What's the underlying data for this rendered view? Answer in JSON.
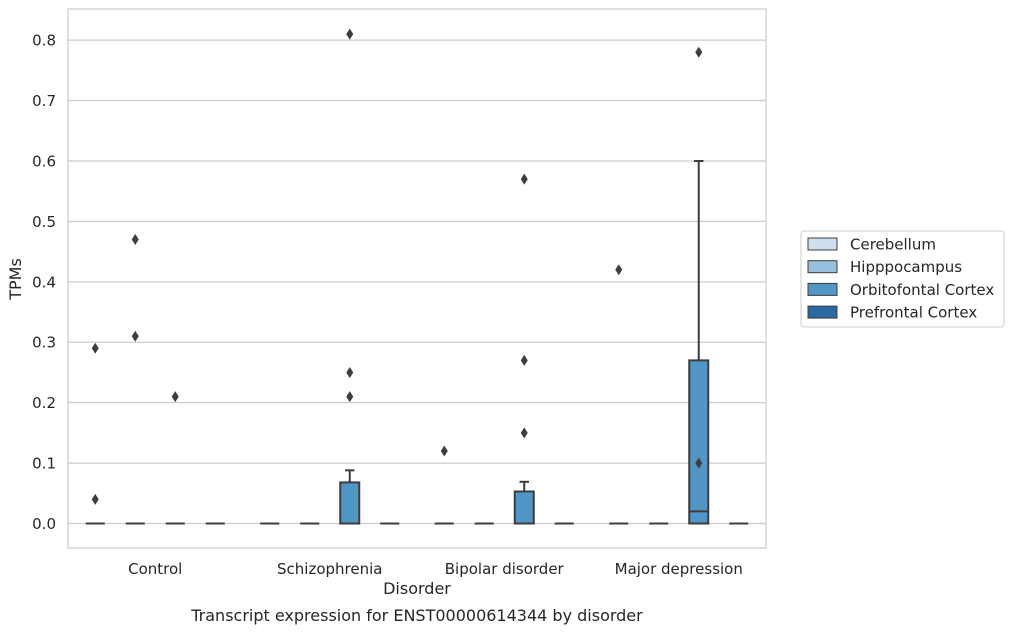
{
  "caption": "Transcript expression for ENST00000614344 by disorder",
  "chart_data": {
    "type": "box",
    "xlabel": "Disorder",
    "ylabel": "TPMs",
    "ylim": [
      -0.04,
      0.85
    ],
    "yticks": [
      0.0,
      0.1,
      0.2,
      0.3,
      0.4,
      0.5,
      0.6,
      0.7,
      0.8
    ],
    "grid": "horizontal",
    "legend_position": "right",
    "categories": [
      "Control",
      "Schizophrenia",
      "Bipolar disorder",
      "Major depression"
    ],
    "series": [
      {
        "name": "Cerebellum",
        "color": "#d0dff0"
      },
      {
        "name": "Hipppocampus",
        "color": "#96c0dd"
      },
      {
        "name": "Orbitofontal Cortex",
        "color": "#5196c5"
      },
      {
        "name": "Prefrontal Cortex",
        "color": "#2a68a4"
      }
    ],
    "groups": [
      {
        "boxes": [
          {
            "series": "Cerebellum",
            "q1": 0,
            "median": 0,
            "q3": 0,
            "whislo": 0,
            "whishi": 0,
            "fliers": [
              0.29,
              0.04
            ]
          },
          {
            "series": "Hipppocampus",
            "q1": 0,
            "median": 0,
            "q3": 0,
            "whislo": 0,
            "whishi": 0,
            "fliers": [
              0.47,
              0.31
            ]
          },
          {
            "series": "Orbitofontal Cortex",
            "q1": 0,
            "median": 0,
            "q3": 0,
            "whislo": 0,
            "whishi": 0,
            "fliers": [
              0.21
            ]
          },
          {
            "series": "Prefrontal Cortex",
            "q1": 0,
            "median": 0,
            "q3": 0,
            "whislo": 0,
            "whishi": 0,
            "fliers": []
          }
        ]
      },
      {
        "boxes": [
          {
            "series": "Cerebellum",
            "q1": 0,
            "median": 0,
            "q3": 0,
            "whislo": 0,
            "whishi": 0,
            "fliers": []
          },
          {
            "series": "Hipppocampus",
            "q1": 0,
            "median": 0,
            "q3": 0,
            "whislo": 0,
            "whishi": 0,
            "fliers": []
          },
          {
            "series": "Orbitofontal Cortex",
            "q1": 0,
            "median": 0,
            "q3": 0.068,
            "whislo": 0,
            "whishi": 0.088,
            "fliers": [
              0.81,
              0.25,
              0.21
            ]
          },
          {
            "series": "Prefrontal Cortex",
            "q1": 0,
            "median": 0,
            "q3": 0,
            "whislo": 0,
            "whishi": 0,
            "fliers": []
          }
        ]
      },
      {
        "boxes": [
          {
            "series": "Cerebellum",
            "q1": 0,
            "median": 0,
            "q3": 0,
            "whislo": 0,
            "whishi": 0,
            "fliers": [
              0.12
            ]
          },
          {
            "series": "Hipppocampus",
            "q1": 0,
            "median": 0,
            "q3": 0,
            "whislo": 0,
            "whishi": 0,
            "fliers": []
          },
          {
            "series": "Orbitofontal Cortex",
            "q1": 0,
            "median": 0,
            "q3": 0.053,
            "whislo": 0,
            "whishi": 0.069,
            "fliers": [
              0.57,
              0.27,
              0.15
            ]
          },
          {
            "series": "Prefrontal Cortex",
            "q1": 0,
            "median": 0,
            "q3": 0,
            "whislo": 0,
            "whishi": 0,
            "fliers": []
          }
        ]
      },
      {
        "boxes": [
          {
            "series": "Cerebellum",
            "q1": 0,
            "median": 0,
            "q3": 0,
            "whislo": 0,
            "whishi": 0,
            "fliers": [
              0.42
            ]
          },
          {
            "series": "Hipppocampus",
            "q1": 0,
            "median": 0,
            "q3": 0,
            "whislo": 0,
            "whishi": 0,
            "fliers": []
          },
          {
            "series": "Orbitofontal Cortex",
            "q1": 0,
            "median": 0.02,
            "q3": 0.27,
            "whislo": 0,
            "whishi": 0.6,
            "fliers": [
              0.78,
              0.1
            ]
          },
          {
            "series": "Prefrontal Cortex",
            "q1": 0,
            "median": 0,
            "q3": 0,
            "whislo": 0,
            "whishi": 0,
            "fliers": []
          }
        ]
      }
    ]
  }
}
